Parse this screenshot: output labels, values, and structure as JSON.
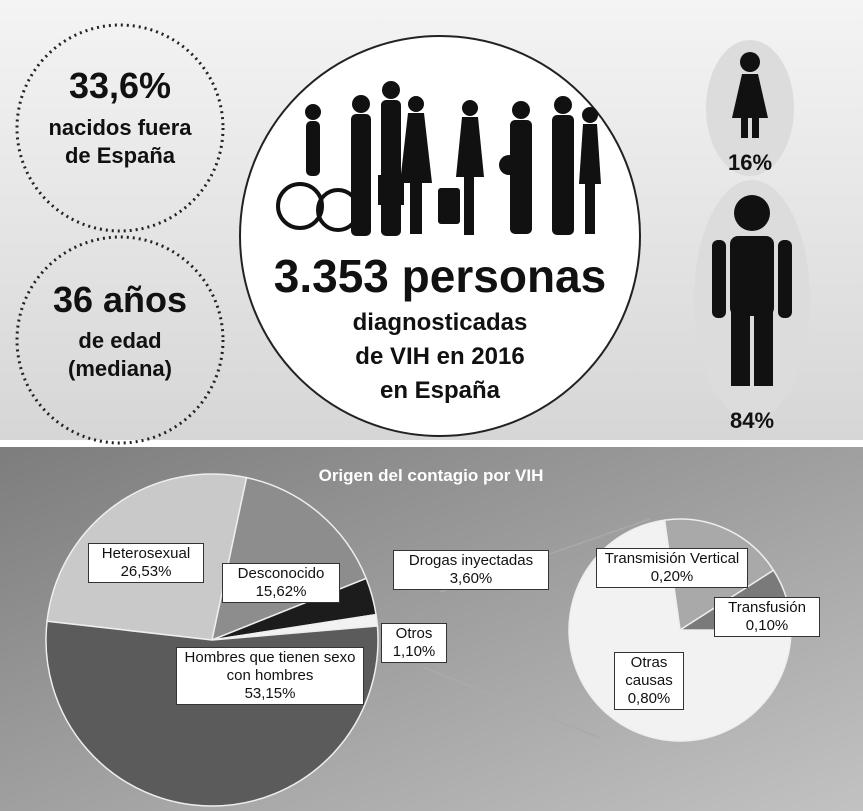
{
  "summary": {
    "abroad_pct": "33,6%",
    "abroad_text": [
      "nacidos fuera",
      "de España"
    ],
    "age": "36 años",
    "age_text": [
      "de edad",
      "(mediana)"
    ],
    "total": "3.353 personas",
    "total_text": [
      "diagnosticadas",
      "de VIH en 2016",
      "en España"
    ],
    "women_pct": "16%",
    "men_pct": "84%"
  },
  "chart_data": {
    "type": "pie",
    "title": "Origen del contagio por VIH",
    "categories": [
      "Heterosexual",
      "Desconocido",
      "Drogas inyectadas",
      "Otros",
      "Hombres que tienen sexo con hombres"
    ],
    "values": [
      26.53,
      15.62,
      3.6,
      1.1,
      53.15
    ],
    "value_labels": [
      "26,53%",
      "15,62%",
      "3,60%",
      "1,10%",
      "53,15%"
    ],
    "colors": [
      "#c9c9c9",
      "#8d8d8d",
      "#1c1c1c",
      "#f2f2f2",
      "#5b5b5b"
    ],
    "breakdown": {
      "categories": [
        "Transmisión Vertical",
        "Transfusión",
        "Otras causas"
      ],
      "values": [
        0.2,
        0.1,
        0.8
      ],
      "value_labels": [
        "0,20%",
        "0,10%",
        "0,80%"
      ],
      "colors": [
        "#a9a9a9",
        "#7a7a7a",
        "#f2f2f2"
      ]
    }
  }
}
